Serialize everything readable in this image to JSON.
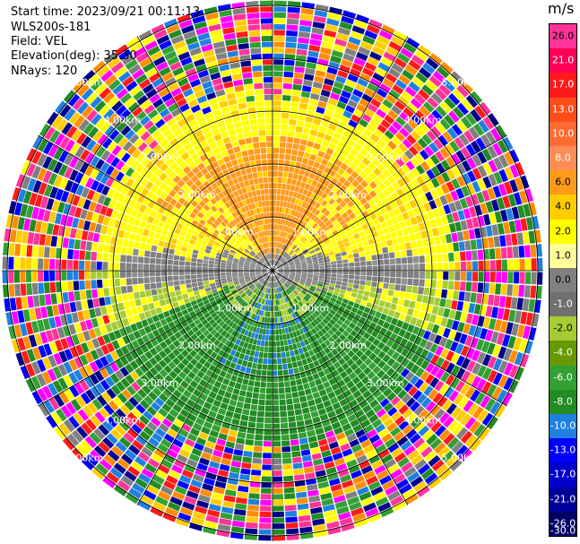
{
  "info": {
    "start_time": "Start time: 2023/09/21 00:11:13",
    "instrument": "WLS200s-181",
    "field": "Field: VEL",
    "elevation": "Elevation(deg): 35.30",
    "nrays": "NRays: 120"
  },
  "colorbar": {
    "unit": "m/s",
    "ticks": [
      "26.0",
      "21.0",
      "17.0",
      "13.0",
      "10.0",
      "8.0",
      "6.0",
      "4.0",
      "2.0",
      "1.0",
      "0.0",
      "-1.0",
      "-2.0",
      "-4.0",
      "-6.0",
      "-8.0",
      "-10.0",
      "-13.0",
      "-17.0",
      "-21.0",
      "-26.0",
      "-30.0"
    ],
    "colors": [
      "#ff3399",
      "#ff0055",
      "#ff1a1a",
      "#ff4d1a",
      "#ff6a33",
      "#ff8c55",
      "#ff9a1a",
      "#ffcc00",
      "#ffff00",
      "#ffff99",
      "#808080",
      "#707070",
      "#a6cc33",
      "#669900",
      "#33a033",
      "#228b22",
      "#2080e0",
      "#0000ff",
      "#0000cc",
      "#00009a",
      "#000066"
    ],
    "label_colors": [
      "#000",
      "#fff",
      "#fff",
      "#fff",
      "#fff",
      "#fff",
      "#000",
      "#000",
      "#000",
      "#000",
      "#000",
      "#fff",
      "#000",
      "#fff",
      "#fff",
      "#fff",
      "#fff",
      "#fff",
      "#fff",
      "#fff",
      "#fff",
      "#fff"
    ]
  },
  "rings": {
    "labels": [
      "1.00km",
      "2.00km",
      "3.00km",
      "4.00km",
      "5.00km"
    ]
  },
  "noise_palette": [
    "#ff00ff",
    "#0000ff",
    "#ffff00",
    "#ff8c00",
    "#ff3399",
    "#00008b",
    "#228b22",
    "#808080",
    "#ff1a1a",
    "#33a033",
    "#2080e0",
    "#ffcc00"
  ]
}
